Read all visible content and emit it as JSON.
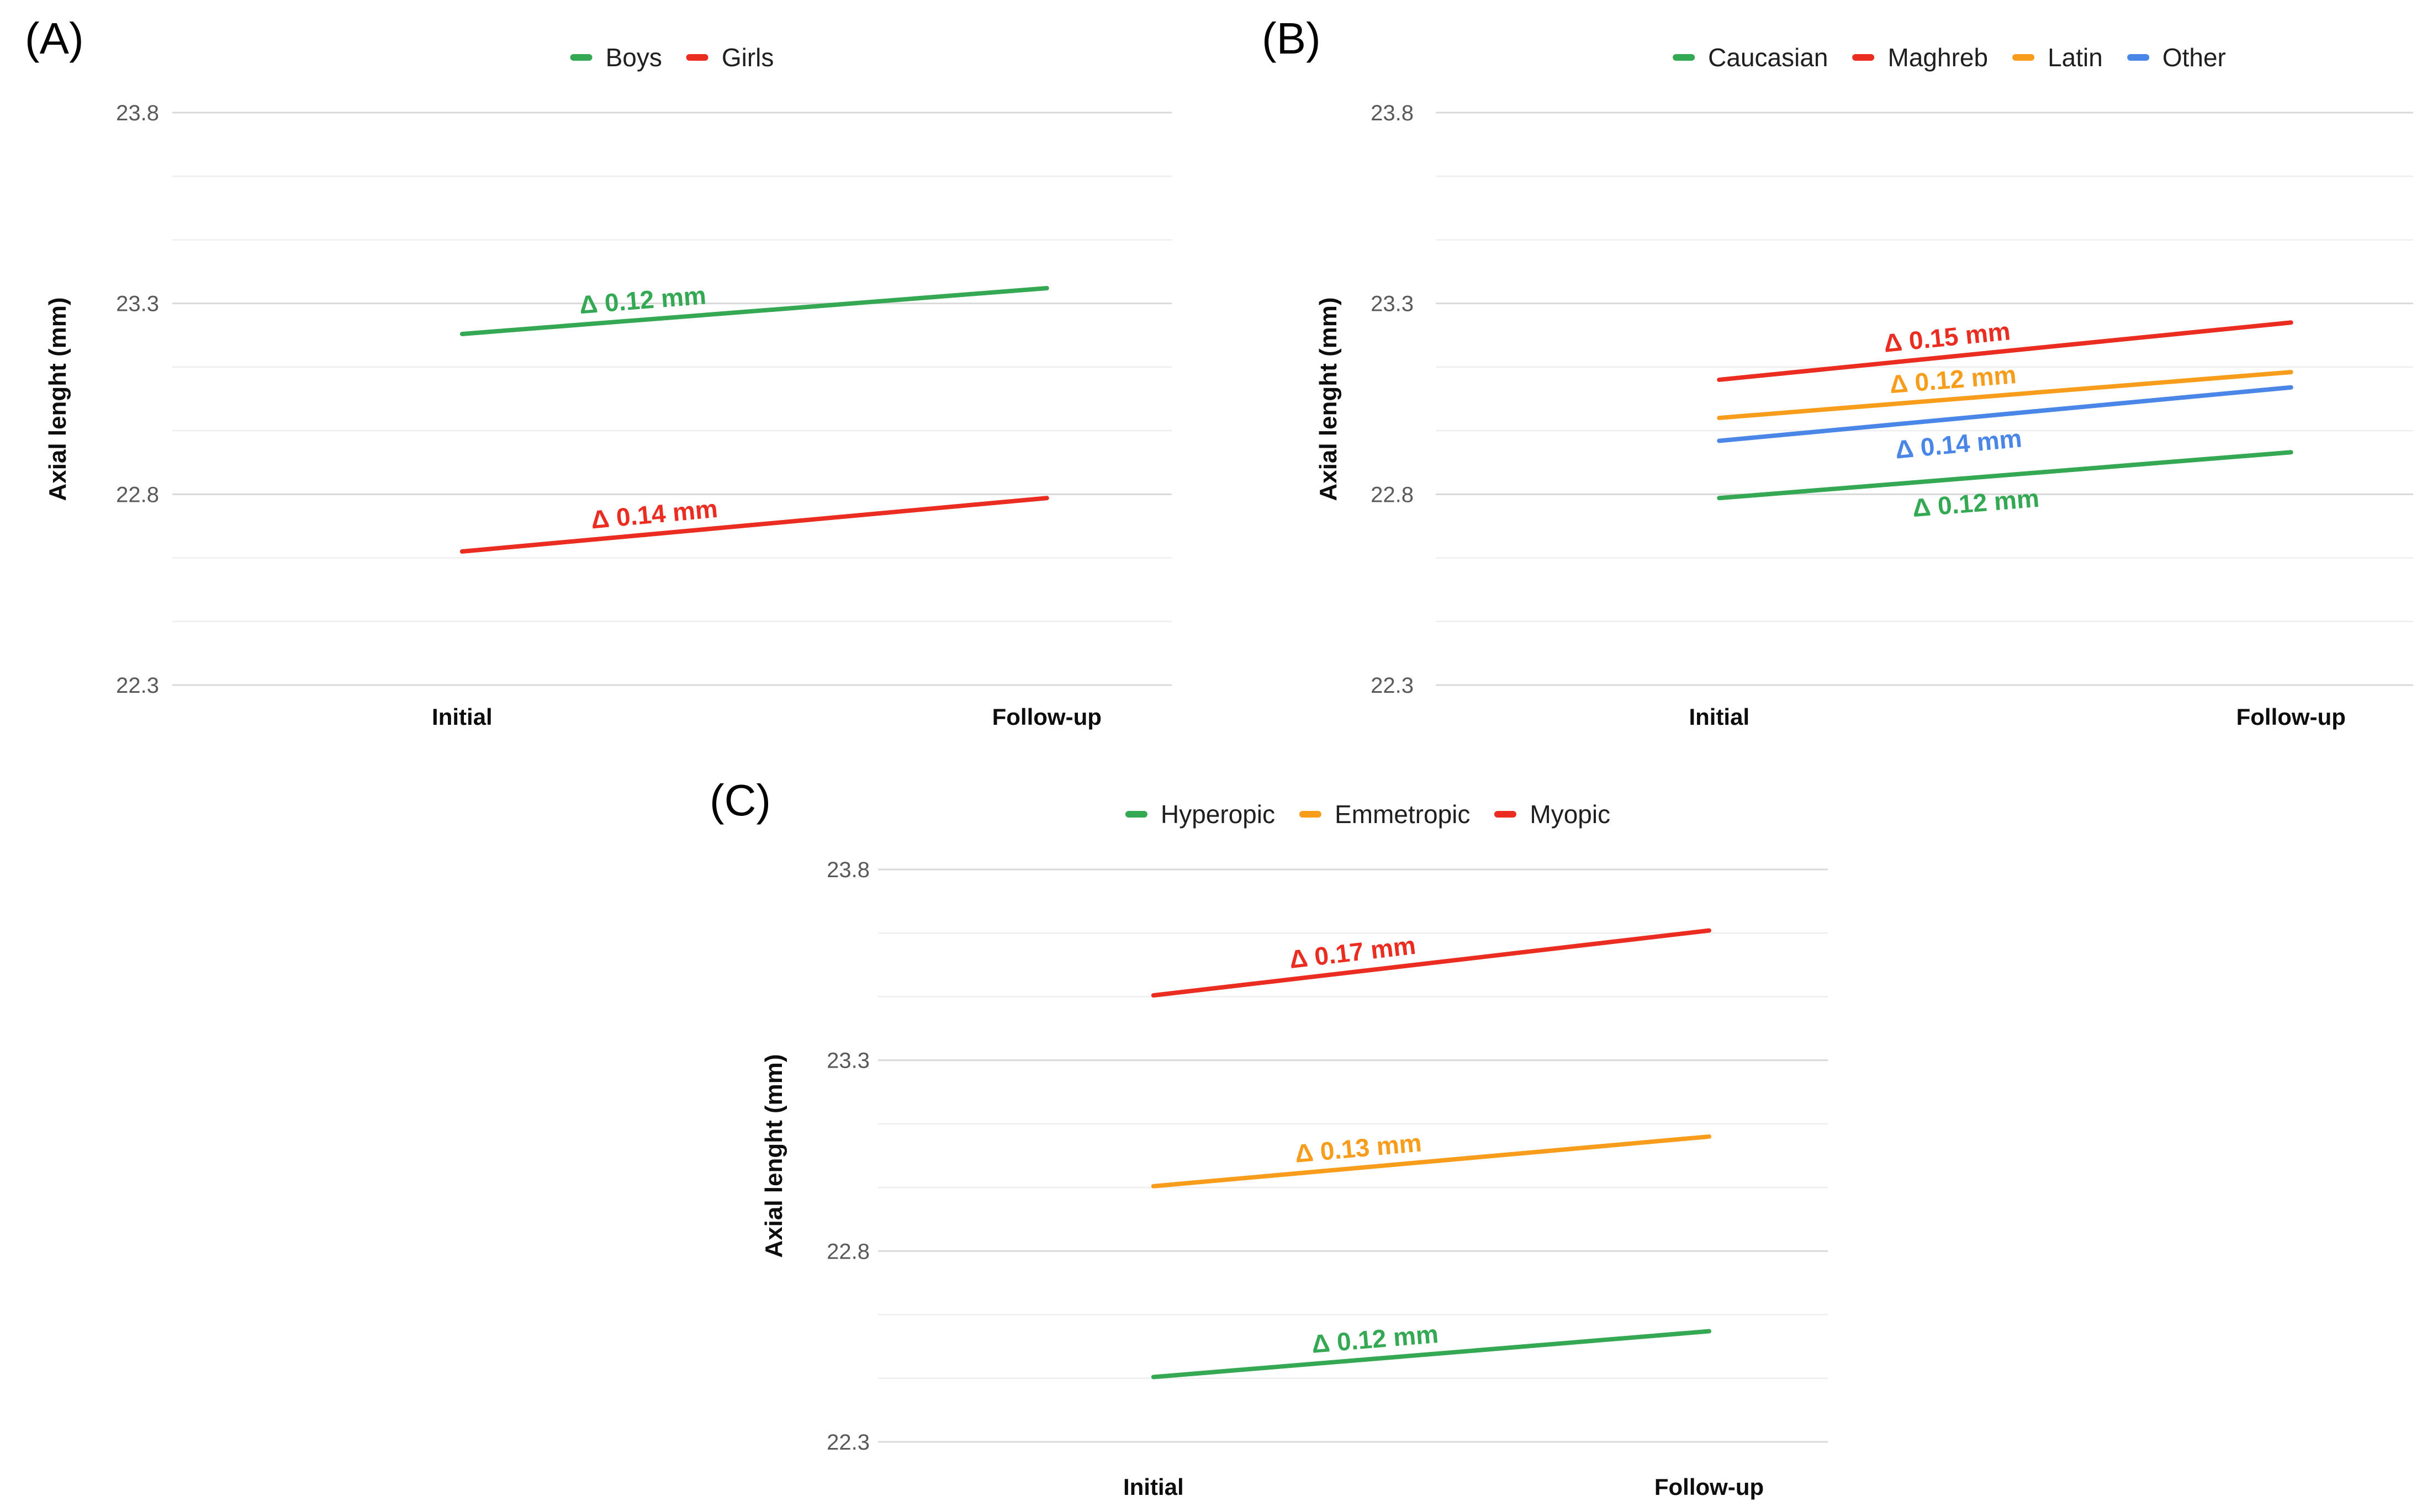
{
  "chart_data": [
    {
      "type": "line",
      "panel_label": "(A)",
      "ylabel": "Axial lenght (mm)",
      "x_categories": [
        "Initial",
        "Follow-up"
      ],
      "ylim": [
        22.3,
        23.8
      ],
      "yticks": [
        22.3,
        22.8,
        23.3,
        23.8
      ],
      "y_minor_divisions": 3,
      "grid": true,
      "legend_position": "top",
      "series": [
        {
          "name": "Boys",
          "color": "#34a853",
          "values": [
            23.22,
            23.34
          ],
          "annotation": "Δ 0.12 mm",
          "annotation_side": "above",
          "annotation_t": 0.31
        },
        {
          "name": "Girls",
          "color": "#ea2c21",
          "values": [
            22.65,
            22.79
          ],
          "annotation": "Δ 0.14 mm",
          "annotation_side": "above",
          "annotation_t": 0.33
        }
      ]
    },
    {
      "type": "line",
      "panel_label": "(B)",
      "ylabel": "Axial lenght (mm)",
      "x_categories": [
        "Initial",
        "Follow-up"
      ],
      "ylim": [
        22.3,
        23.8
      ],
      "yticks": [
        22.3,
        22.8,
        23.3,
        23.8
      ],
      "y_minor_divisions": 3,
      "grid": true,
      "legend_position": "top",
      "series": [
        {
          "name": "Caucasian",
          "color": "#34a853",
          "values": [
            22.79,
            22.91
          ],
          "annotation": "Δ 0.12 mm",
          "annotation_side": "below",
          "annotation_t": 0.45
        },
        {
          "name": "Maghreb",
          "color": "#ea2c21",
          "values": [
            23.1,
            23.25
          ],
          "annotation": "Δ 0.15 mm",
          "annotation_side": "above",
          "annotation_t": 0.4
        },
        {
          "name": "Latin",
          "color": "#f79c1b",
          "values": [
            23.0,
            23.12
          ],
          "annotation": "Δ 0.12 mm",
          "annotation_side": "above",
          "annotation_t": 0.41
        },
        {
          "name": "Other",
          "color": "#4a86e8",
          "values": [
            22.94,
            23.08
          ],
          "annotation": "Δ 0.14 mm",
          "annotation_side": "below",
          "annotation_t": 0.42
        }
      ]
    },
    {
      "type": "line",
      "panel_label": "(C)",
      "ylabel": "Axial lenght (mm)",
      "x_categories": [
        "Initial",
        "Follow-up"
      ],
      "ylim": [
        22.3,
        23.8
      ],
      "yticks": [
        22.3,
        22.8,
        23.3,
        23.8
      ],
      "y_minor_divisions": 3,
      "grid": true,
      "legend_position": "top",
      "series": [
        {
          "name": "Hyperopic",
          "color": "#34a853",
          "values": [
            22.47,
            22.59
          ],
          "annotation": "Δ 0.12 mm",
          "annotation_side": "above",
          "annotation_t": 0.4
        },
        {
          "name": "Emmetropic",
          "color": "#f79c1b",
          "values": [
            22.97,
            23.1
          ],
          "annotation": "Δ 0.13 mm",
          "annotation_side": "above",
          "annotation_t": 0.37
        },
        {
          "name": "Myopic",
          "color": "#ea2c21",
          "values": [
            23.47,
            23.64
          ],
          "annotation": "Δ 0.17 mm",
          "annotation_side": "above",
          "annotation_t": 0.36
        }
      ]
    }
  ],
  "style_colors": {
    "grid_minor": "#eeeeee",
    "grid_major": "#d9d9d9",
    "tick_text": "#595959",
    "label_text": "#0d0d0d"
  }
}
